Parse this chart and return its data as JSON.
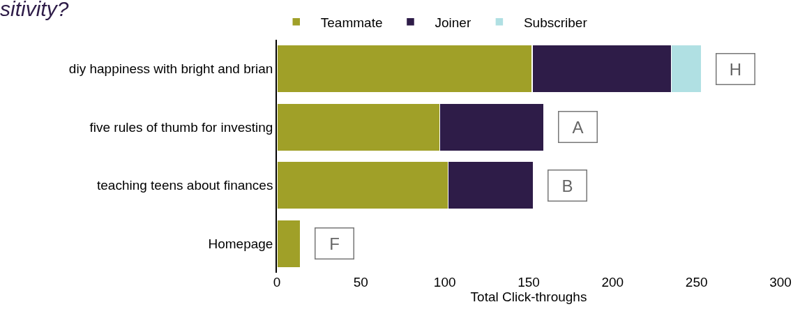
{
  "chart_data": {
    "type": "bar",
    "orientation": "horizontal",
    "stacked": true,
    "title": "sitivity?",
    "xlabel": "Total Click-throughs",
    "categories": [
      "diy happiness with bright and brian",
      "five rules of thumb for investing",
      "teaching teens about finances",
      "Homepage"
    ],
    "series": [
      {
        "name": "Teammate",
        "color": "#a0a028",
        "values": [
          152,
          97,
          102,
          14
        ]
      },
      {
        "name": "Joiner",
        "color": "#2e1c48",
        "values": [
          83,
          62,
          51,
          null
        ]
      },
      {
        "name": "Subscriber",
        "color": "#b0e0e3",
        "values": [
          18,
          null,
          null,
          null
        ]
      }
    ],
    "xlim": [
      0,
      300
    ],
    "xticks": [
      0,
      50,
      100,
      150,
      200,
      250,
      300
    ],
    "legend": "top",
    "annotations": [
      "H",
      "A",
      "B",
      "F"
    ]
  }
}
